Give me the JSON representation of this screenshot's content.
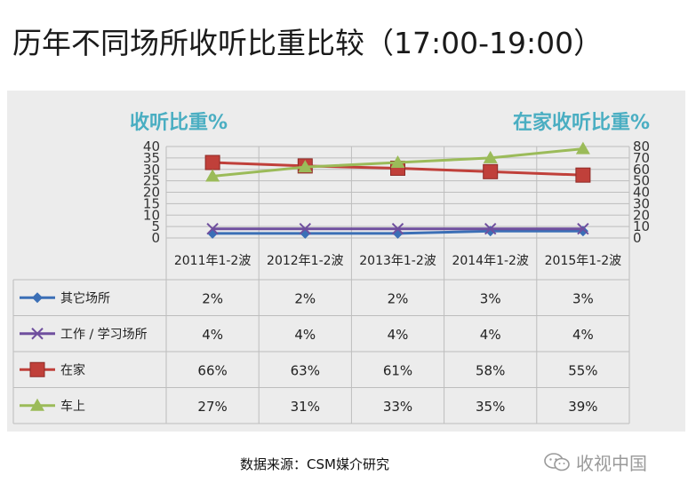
{
  "title": "历年不同场所收听比重比较（17:00-19:00）",
  "left_axis_title": "收听比重%",
  "right_axis_title": "在家收听比重%",
  "source": "数据来源：CSM媒介研究",
  "watermark": "收视中国",
  "colors": {
    "title_accent": "#4aaec2",
    "grid": "#bdbdbd",
    "panel": "#ececec"
  },
  "chart_data": {
    "type": "line",
    "categories": [
      "2011年1-2波",
      "2012年1-2波",
      "2013年1-2波",
      "2014年1-2波",
      "2015年1-2波"
    ],
    "y_left": {
      "lim": [
        0,
        40
      ],
      "ticks": [
        0,
        5,
        10,
        15,
        20,
        25,
        30,
        35,
        40
      ]
    },
    "y_right": {
      "lim": [
        0,
        80
      ],
      "ticks": [
        0,
        10,
        20,
        30,
        40,
        50,
        60,
        70,
        80
      ]
    },
    "grid": true,
    "series": [
      {
        "name": "其它场所",
        "axis": "left",
        "color": "#3b6fb6",
        "marker": "diamond",
        "values": [
          2,
          2,
          2,
          3,
          3
        ],
        "labels": [
          "2%",
          "2%",
          "2%",
          "3%",
          "3%"
        ]
      },
      {
        "name": "工作 / 学习场所",
        "axis": "left",
        "color": "#6f4f9e",
        "marker": "x",
        "values": [
          4,
          4,
          4,
          4,
          4
        ],
        "labels": [
          "4%",
          "4%",
          "4%",
          "4%",
          "4%"
        ]
      },
      {
        "name": "在家",
        "axis": "right",
        "color": "#c0403a",
        "marker": "square",
        "values": [
          66,
          63,
          61,
          58,
          55
        ],
        "labels": [
          "66%",
          "63%",
          "61%",
          "58%",
          "55%"
        ]
      },
      {
        "name": "车上",
        "axis": "left",
        "color": "#9bbb59",
        "marker": "triangle",
        "values": [
          27,
          31,
          33,
          35,
          39
        ],
        "labels": [
          "27%",
          "31%",
          "33%",
          "35%",
          "39%"
        ]
      }
    ]
  }
}
